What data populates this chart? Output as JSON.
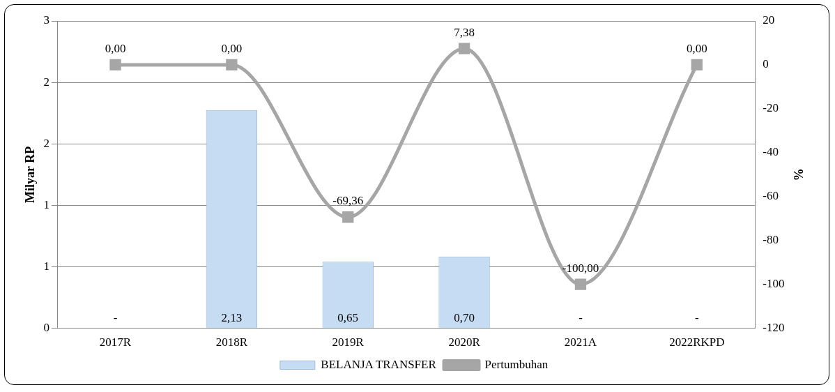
{
  "chart_data": {
    "type": "bar",
    "categories": [
      "2017R",
      "2018R",
      "2019R",
      "2020R",
      "2021A",
      "2022RKPD"
    ],
    "ylabel": "Milyar RP",
    "y2label": "%",
    "ylim": [
      0,
      3
    ],
    "yticks": [
      0,
      {
        "value": 0.6,
        "label": "1"
      },
      {
        "value": 1.2,
        "label": "1"
      },
      {
        "value": 1.8,
        "label": "2"
      },
      {
        "value": 2.4,
        "label": "2"
      },
      3
    ],
    "y2lim": [
      -120,
      20
    ],
    "y2ticks": [
      -120,
      -100,
      -80,
      -60,
      -40,
      -20,
      0,
      20
    ],
    "grid": "y",
    "legend": "bottom",
    "series": [
      {
        "name": "BELANJA TRANSFER",
        "color": "#c6dcf2",
        "values": [
          0,
          2.13,
          0.65,
          0.7,
          0,
          0
        ],
        "value_labels": [
          "-",
          "2,13",
          "0,65",
          "0,70",
          "-",
          "-"
        ]
      },
      {
        "name": "Pertumbuhan",
        "type": "line",
        "axis": "y2",
        "color": "#a6a6a6",
        "marker": "square",
        "values": [
          0,
          0,
          -69.36,
          7.38,
          -100,
          0
        ],
        "value_labels": [
          "0,00",
          "0,00",
          "-69,36",
          "7,38",
          "-100,00",
          "0,00"
        ]
      }
    ]
  }
}
